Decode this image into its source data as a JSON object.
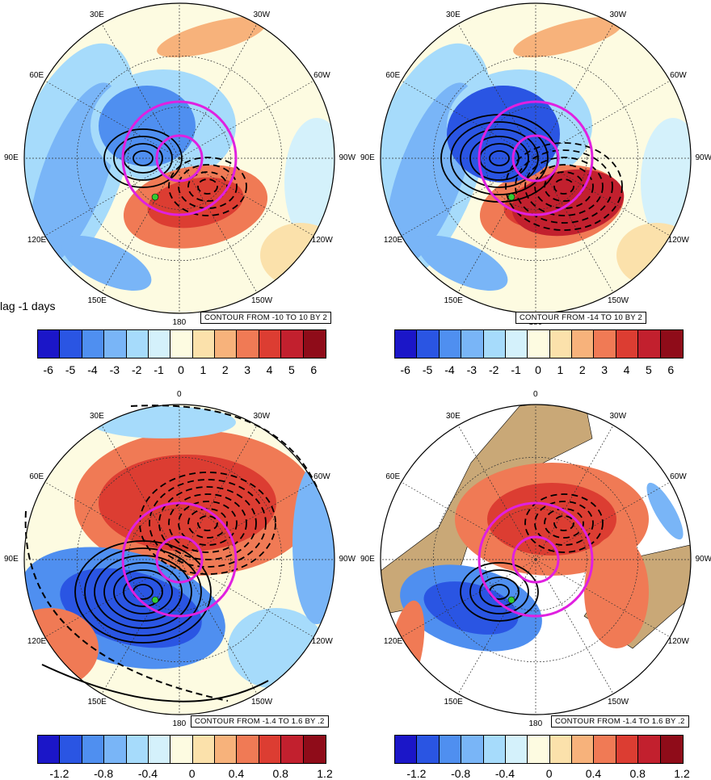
{
  "lag_label": "lag -1 days",
  "longitude_labels": [
    "0",
    "30W",
    "60W",
    "90W",
    "120W",
    "150W",
    "180",
    "150E",
    "120E",
    "90E",
    "60E",
    "30E"
  ],
  "panels": [
    {
      "contour_text": "CONTOUR FROM -10 TO 10 BY 2",
      "colorbar_colors": [
        "#1b16c8",
        "#2a55e3",
        "#4f8ff0",
        "#79b5f7",
        "#a6dbfb",
        "#d4f1fb",
        "#fdfbe1",
        "#fbe1ab",
        "#f7b27b",
        "#f07a55",
        "#dc3d32",
        "#c2202e",
        "#8f0c19"
      ],
      "tick_labels": [
        "-6",
        "-5",
        "-4",
        "-3",
        "-2",
        "-1",
        "0",
        "1",
        "2",
        "3",
        "4",
        "5",
        "6"
      ]
    },
    {
      "contour_text": "CONTOUR FROM -14 TO 10 BY 2",
      "colorbar_colors": [
        "#1b16c8",
        "#2a55e3",
        "#4f8ff0",
        "#79b5f7",
        "#a6dbfb",
        "#d4f1fb",
        "#fdfbe1",
        "#fbe1ab",
        "#f7b27b",
        "#f07a55",
        "#dc3d32",
        "#c2202e",
        "#8f0c19"
      ],
      "tick_labels": [
        "-6",
        "-5",
        "-4",
        "-3",
        "-2",
        "-1",
        "0",
        "1",
        "2",
        "3",
        "4",
        "5",
        "6"
      ]
    },
    {
      "contour_text": "CONTOUR FROM -1.4 TO 1.6 BY .2",
      "colorbar_colors": [
        "#1b16c8",
        "#2a55e3",
        "#4f8ff0",
        "#79b5f7",
        "#a6dbfb",
        "#d4f1fb",
        "#fdfbe1",
        "#fbe1ab",
        "#f7b27b",
        "#f07a55",
        "#dc3d32",
        "#c2202e",
        "#8f0c19"
      ],
      "tick_labels": [
        "-1.2",
        "-0.8",
        "-0.4",
        "0",
        "0.4",
        "0.8",
        "1.2"
      ]
    },
    {
      "contour_text": "CONTOUR FROM -1.4 TO 1.6 BY .2",
      "colorbar_colors": [
        "#1b16c8",
        "#2a55e3",
        "#4f8ff0",
        "#79b5f7",
        "#a6dbfb",
        "#d4f1fb",
        "#fdfbe1",
        "#fbe1ab",
        "#f7b27b",
        "#f07a55",
        "#dc3d32",
        "#c2202e",
        "#8f0c19"
      ],
      "tick_labels": [
        "-1.2",
        "-0.8",
        "-0.4",
        "0",
        "0.4",
        "0.8",
        "1.2"
      ]
    }
  ],
  "colors": {
    "magenta_circle": "#e020e0",
    "green_marker": "#33cc33",
    "land_tan": "#c9a877",
    "ocean_base": "#fdfbe1"
  }
}
